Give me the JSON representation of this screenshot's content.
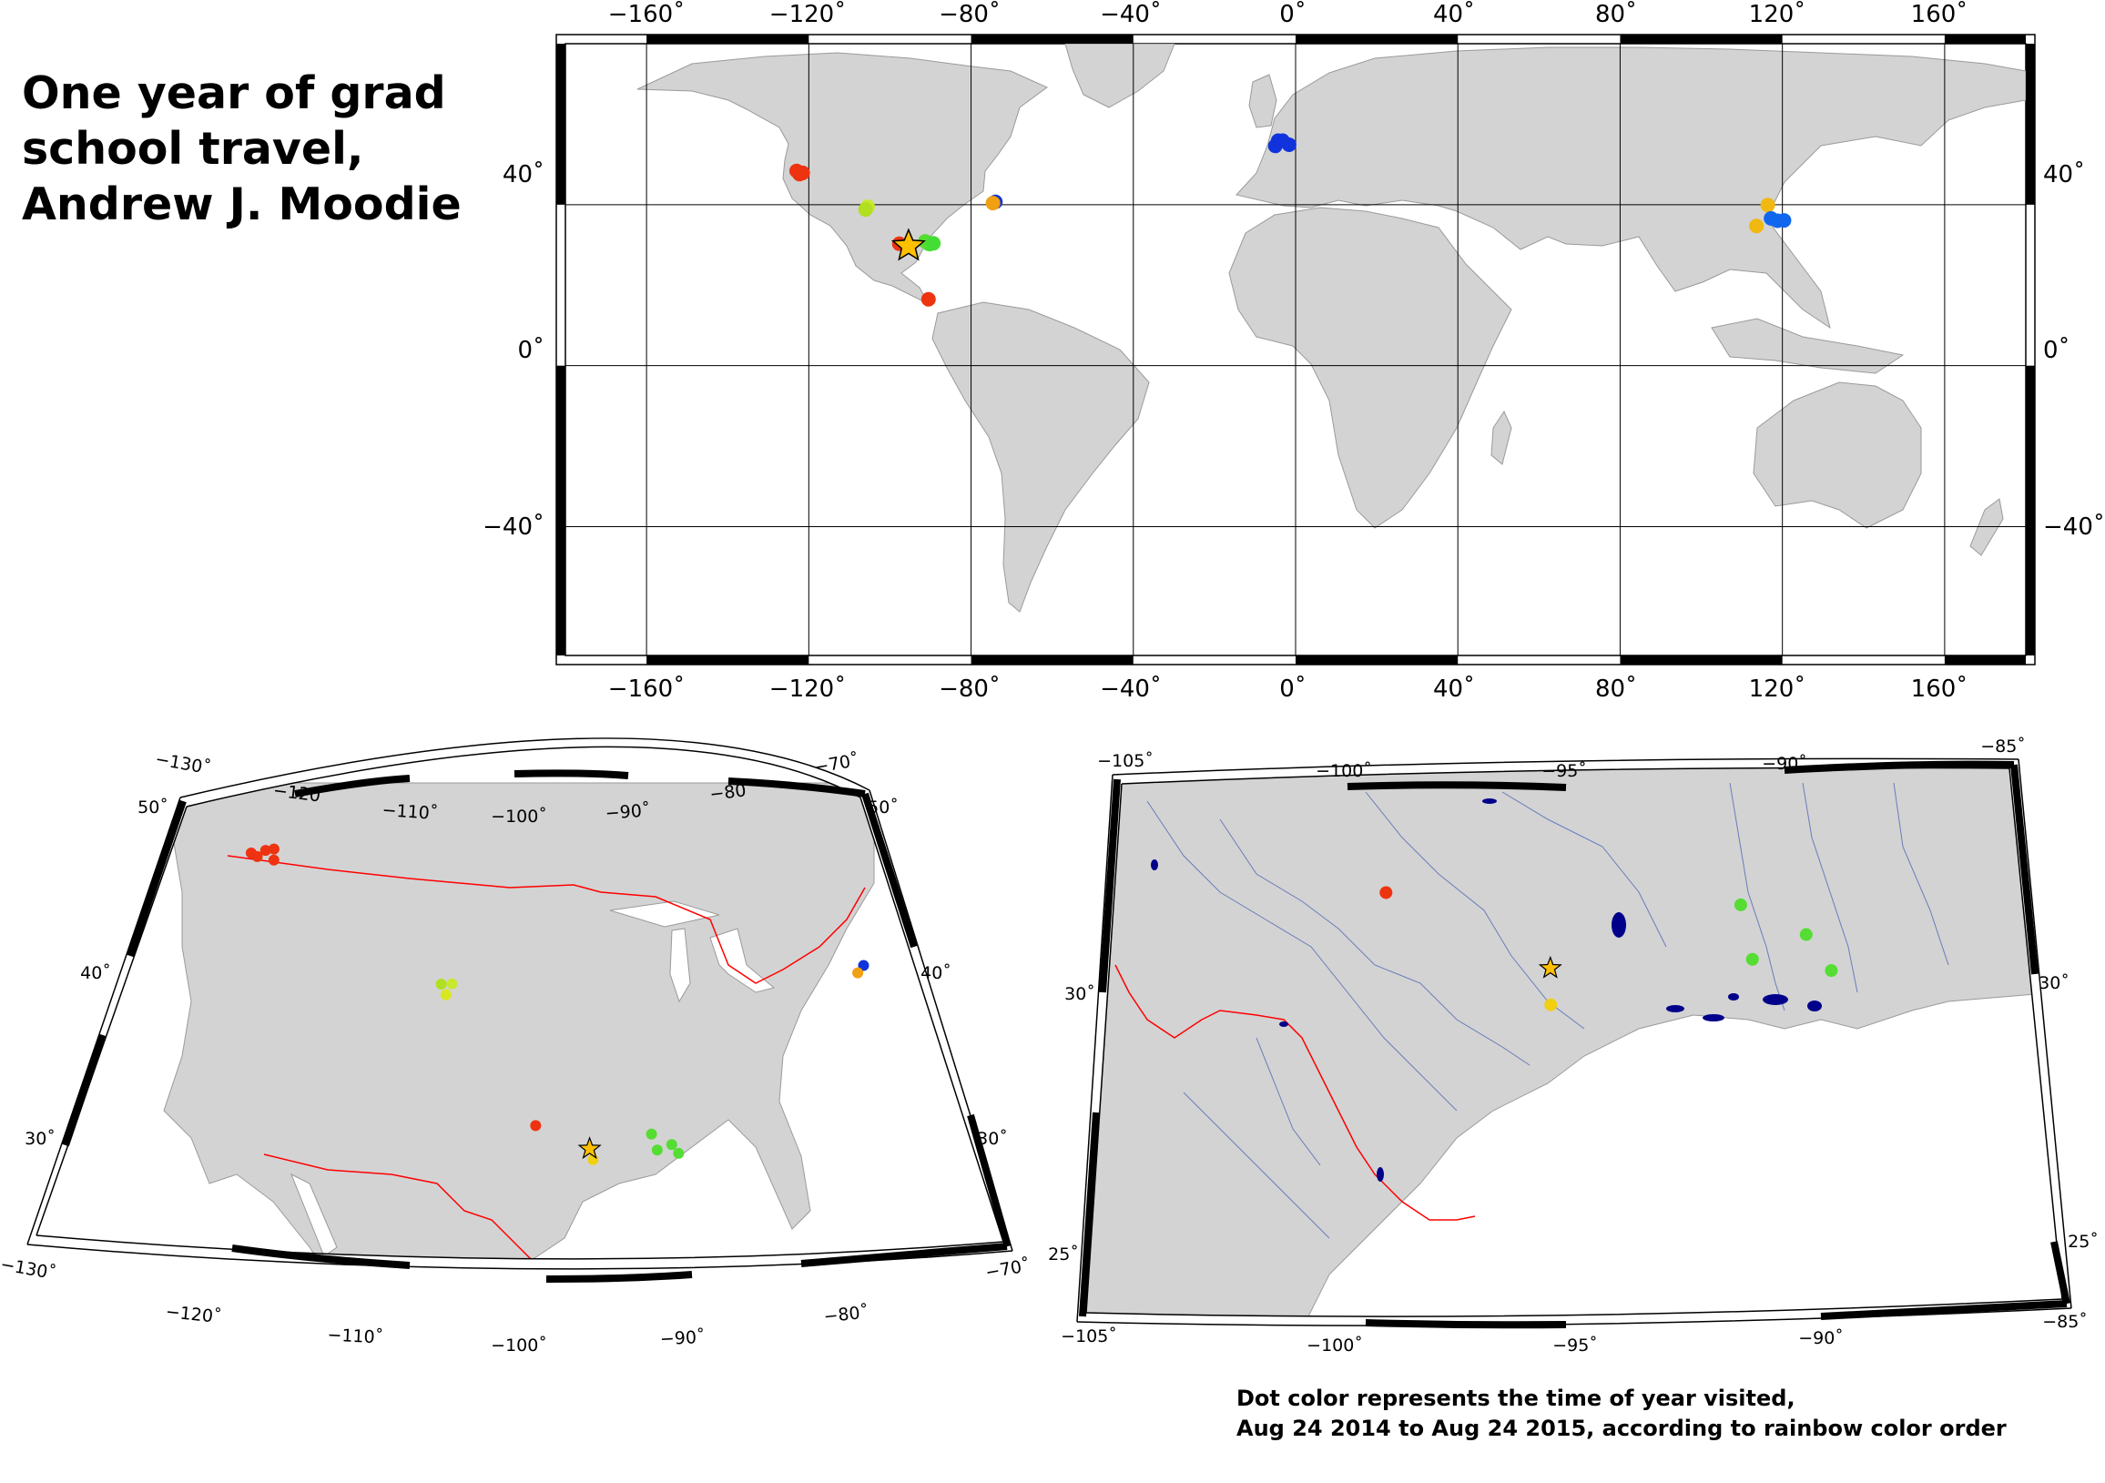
{
  "title_lines": [
    "One year of grad",
    "school travel,",
    "Andrew J. Moodie"
  ],
  "caption_lines": [
    "Dot color represents the time of year visited,",
    "Aug 24 2014 to Aug 24 2015, according to rainbow color order"
  ],
  "colors": {
    "land": "#d3d3d3",
    "border": "#9a9a9a",
    "grid": "#000000",
    "political_border": "#ff0000",
    "water": "#00008b",
    "river": "#5a6fb0",
    "home_star": "#ffc000"
  },
  "world_map": {
    "lon_ticks": [
      "−160˚",
      "−120˚",
      "−80˚",
      "−40˚",
      "0˚",
      "40˚",
      "80˚",
      "120˚",
      "160˚"
    ],
    "lat_ticks": [
      "40˚",
      "0˚",
      "−40˚"
    ],
    "home": {
      "name": "home-star",
      "lon": -95.4,
      "lat": 29.7
    },
    "visits": [
      {
        "lon": -122.3,
        "lat": 47.6,
        "color": "#ee3311"
      },
      {
        "lon": -123.0,
        "lat": 48.4,
        "color": "#ee3311"
      },
      {
        "lon": -121.5,
        "lat": 47.9,
        "color": "#ee3311"
      },
      {
        "lon": -74.0,
        "lat": 40.7,
        "color": "#1133dd"
      },
      {
        "lon": -74.6,
        "lat": 40.4,
        "color": "#f0a010"
      },
      {
        "lon": -105.5,
        "lat": 39.5,
        "color": "#c8e830"
      },
      {
        "lon": -106.0,
        "lat": 38.8,
        "color": "#b0e020"
      },
      {
        "lon": -90.3,
        "lat": 30.2,
        "color": "#44dd33"
      },
      {
        "lon": -91.3,
        "lat": 30.9,
        "color": "#55dd33"
      },
      {
        "lon": -89.3,
        "lat": 30.4,
        "color": "#44dd33"
      },
      {
        "lon": -97.7,
        "lat": 30.3,
        "color": "#ee3311"
      },
      {
        "lon": -90.5,
        "lat": 16.5,
        "color": "#ee3311"
      },
      {
        "lon": -4.3,
        "lat": 55.9,
        "color": "#1133dd"
      },
      {
        "lon": -3.2,
        "lat": 55.9,
        "color": "#1133dd"
      },
      {
        "lon": -5.0,
        "lat": 54.6,
        "color": "#1133dd"
      },
      {
        "lon": -1.6,
        "lat": 54.9,
        "color": "#1133dd"
      },
      {
        "lon": 116.4,
        "lat": 39.9,
        "color": "#f0b810"
      },
      {
        "lon": 113.6,
        "lat": 34.7,
        "color": "#f0b810"
      },
      {
        "lon": 117.2,
        "lat": 36.6,
        "color": "#1166ee"
      },
      {
        "lon": 118.8,
        "lat": 36.0,
        "color": "#1166ee"
      },
      {
        "lon": 120.4,
        "lat": 36.1,
        "color": "#1166ee"
      }
    ]
  },
  "us_map": {
    "lon_top": [
      "−130˚",
      "−120˚",
      "−110˚",
      "−100˚",
      "−90˚",
      "−80˚",
      "−70˚"
    ],
    "lon_bottom": [
      "−130˚",
      "−120˚",
      "−110˚",
      "−100˚",
      "−90˚",
      "−80˚",
      "−70˚"
    ],
    "lat_left": [
      "50˚",
      "40˚",
      "30˚"
    ],
    "lat_right": [
      "50˚",
      "40˚",
      "30˚"
    ],
    "home": {
      "name": "home-star",
      "lon": -95.4,
      "lat": 29.7
    },
    "visits": [
      {
        "lon": -122.7,
        "lat": 47.6,
        "color": "#ee3311"
      },
      {
        "lon": -122.1,
        "lat": 47.3,
        "color": "#ee3311"
      },
      {
        "lon": -121.5,
        "lat": 47.6,
        "color": "#ee3311"
      },
      {
        "lon": -120.8,
        "lat": 47.6,
        "color": "#ee3311"
      },
      {
        "lon": -120.6,
        "lat": 46.9,
        "color": "#ee3311"
      },
      {
        "lon": -74.0,
        "lat": 40.7,
        "color": "#1133dd"
      },
      {
        "lon": -74.6,
        "lat": 40.2,
        "color": "#f0a010"
      },
      {
        "lon": -106.0,
        "lat": 38.9,
        "color": "#b0e020"
      },
      {
        "lon": -105.2,
        "lat": 38.9,
        "color": "#c8e830"
      },
      {
        "lon": -105.6,
        "lat": 38.3,
        "color": "#d8e820"
      },
      {
        "lon": -99.0,
        "lat": 31.0,
        "color": "#ee3311"
      },
      {
        "lon": -95.2,
        "lat": 29.1,
        "color": "#f0d010"
      },
      {
        "lon": -91.2,
        "lat": 30.5,
        "color": "#55dd33"
      },
      {
        "lon": -90.9,
        "lat": 29.6,
        "color": "#55dd33"
      },
      {
        "lon": -89.9,
        "lat": 29.9,
        "color": "#55dd33"
      },
      {
        "lon": -89.5,
        "lat": 29.4,
        "color": "#55dd33"
      }
    ]
  },
  "gulf_map": {
    "lon_top": [
      "−105˚",
      "−100˚",
      "−95˚",
      "−90˚",
      "−85˚"
    ],
    "lon_bottom": [
      "−105˚",
      "−100˚",
      "−95˚",
      "−90˚",
      "−85˚"
    ],
    "lat_left": [
      "30˚",
      "25˚"
    ],
    "lat_right": [
      "30˚",
      "25˚"
    ],
    "home": {
      "name": "home-star",
      "lon": -95.4,
      "lat": 29.7
    },
    "visits": [
      {
        "lon": -99.0,
        "lat": 31.0,
        "color": "#ee3311"
      },
      {
        "lon": -95.4,
        "lat": 29.1,
        "color": "#f0d010"
      },
      {
        "lon": -91.2,
        "lat": 30.7,
        "color": "#55dd33"
      },
      {
        "lon": -91.0,
        "lat": 29.8,
        "color": "#55dd33"
      },
      {
        "lon": -89.8,
        "lat": 30.2,
        "color": "#55dd33"
      },
      {
        "lon": -89.3,
        "lat": 29.6,
        "color": "#55dd33"
      }
    ]
  }
}
